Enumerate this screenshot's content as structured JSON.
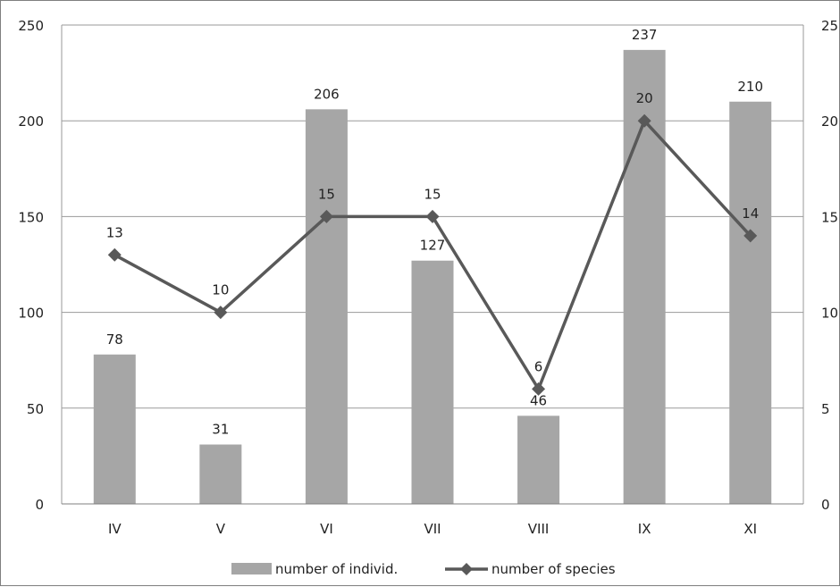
{
  "chart_data": {
    "type": "bar+line",
    "categories": [
      "IV",
      "V",
      "VI",
      "VII",
      "VIII",
      "IX",
      "XI"
    ],
    "series": [
      {
        "name": "number of individ.",
        "type": "bar",
        "axis": "left",
        "values": [
          78,
          31,
          206,
          127,
          46,
          237,
          210
        ],
        "color": "#a6a6a6"
      },
      {
        "name": "number of species",
        "type": "line",
        "axis": "right",
        "marker": "diamond",
        "values": [
          13,
          10,
          15,
          15,
          6,
          20,
          14
        ],
        "color": "#595959"
      }
    ],
    "y_left": {
      "min": 0,
      "max": 250,
      "ticks": [
        "0",
        "50",
        "100",
        "150",
        "200",
        "250"
      ]
    },
    "y_right": {
      "min": 0,
      "max": 25,
      "ticks": [
        "0",
        "5",
        "10",
        "15",
        "20",
        "25"
      ]
    },
    "grid": true,
    "legend": "bottom",
    "title": "",
    "xlabel": "",
    "ylabel": ""
  }
}
